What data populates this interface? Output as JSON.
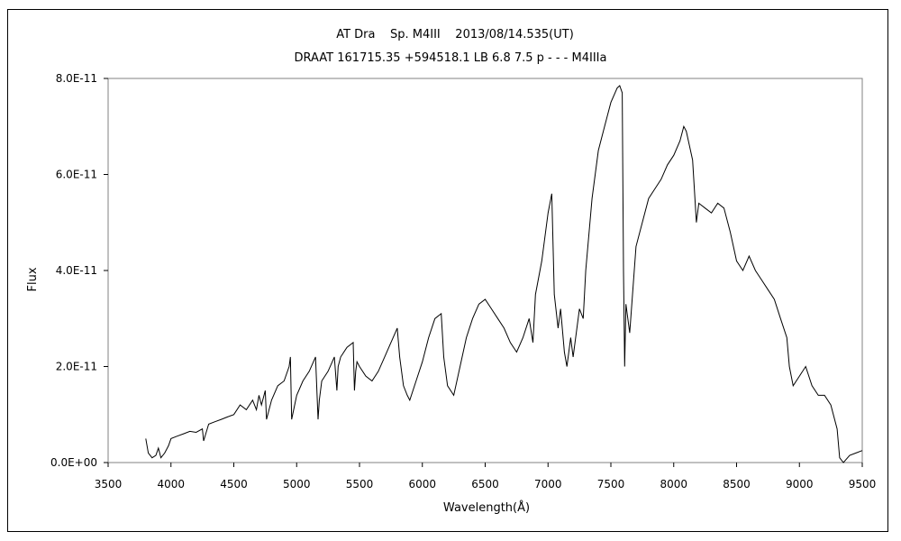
{
  "chart_data": {
    "type": "line",
    "title": "AT Dra    Sp. M4III    2013/08/14.535(UT)",
    "subtitle": "DRAAT 161715.35 +594518.1 LB 6.8 7.5 p - - - M4IIIa",
    "xlabel": "Wavelength(Å)",
    "ylabel": "Flux",
    "xlim": [
      3500,
      9500
    ],
    "ylim": [
      0,
      8e-11
    ],
    "xticks": [
      3500,
      4000,
      4500,
      5000,
      5500,
      6000,
      6500,
      7000,
      7500,
      8000,
      8500,
      9000,
      9500
    ],
    "xtick_labels": [
      "3500",
      "4000",
      "4500",
      "5000",
      "5500",
      "6000",
      "6500",
      "7000",
      "7500",
      "8000",
      "8500",
      "9000",
      "9500"
    ],
    "yticks": [
      0,
      2e-11,
      4e-11,
      6e-11,
      8e-11
    ],
    "ytick_labels": [
      "0.0E+00",
      "2.0E-11",
      "4.0E-11",
      "6.0E-11",
      "8.0E-11"
    ],
    "grid": false,
    "legend": "none",
    "line_color": "#000000",
    "series": [
      {
        "x": [
          3800,
          3820,
          3850,
          3880,
          3900,
          3920,
          3950,
          3980,
          4000,
          4050,
          4100,
          4150,
          4200,
          4250,
          4260,
          4300,
          4350,
          4400,
          4450,
          4500,
          4550,
          4600,
          4650,
          4680,
          4700,
          4720,
          4750,
          4760,
          4800,
          4850,
          4900,
          4940,
          4950,
          4960,
          5000,
          5050,
          5100,
          5150,
          5170,
          5180,
          5200,
          5250,
          5300,
          5320,
          5330,
          5350,
          5400,
          5450,
          5460,
          5470,
          5480,
          5500,
          5550,
          5600,
          5650,
          5700,
          5750,
          5800,
          5820,
          5850,
          5880,
          5900,
          5950,
          6000,
          6050,
          6100,
          6150,
          6170,
          6200,
          6250,
          6300,
          6350,
          6400,
          6450,
          6500,
          6550,
          6600,
          6650,
          6700,
          6750,
          6800,
          6850,
          6880,
          6900,
          6950,
          7000,
          7030,
          7050,
          7080,
          7100,
          7130,
          7150,
          7180,
          7200,
          7250,
          7280,
          7300,
          7350,
          7400,
          7450,
          7500,
          7550,
          7570,
          7590,
          7600,
          7610,
          7620,
          7650,
          7700,
          7750,
          7800,
          7850,
          7900,
          7950,
          8000,
          8050,
          8080,
          8100,
          8150,
          8180,
          8200,
          8250,
          8300,
          8350,
          8400,
          8450,
          8500,
          8550,
          8600,
          8650,
          8700,
          8750,
          8800,
          8850,
          8900,
          8920,
          8950,
          9000,
          9050,
          9100,
          9150,
          9200,
          9250,
          9300,
          9320,
          9350,
          9400,
          9450,
          9500
        ],
        "y": [
          5e-12,
          2e-12,
          1e-12,
          1.5e-12,
          3e-12,
          1e-12,
          2e-12,
          3.5e-12,
          5e-12,
          5.5e-12,
          6e-12,
          6.5e-12,
          6.3e-12,
          7e-12,
          4.5e-12,
          8e-12,
          8.5e-12,
          9e-12,
          9.5e-12,
          1e-11,
          1.2e-11,
          1.1e-11,
          1.3e-11,
          1.1e-11,
          1.4e-11,
          1.2e-11,
          1.5e-11,
          9e-12,
          1.3e-11,
          1.6e-11,
          1.7e-11,
          2e-11,
          2.2e-11,
          9e-12,
          1.4e-11,
          1.7e-11,
          1.9e-11,
          2.2e-11,
          9e-12,
          1.3e-11,
          1.7e-11,
          1.9e-11,
          2.2e-11,
          1.5e-11,
          2e-11,
          2.2e-11,
          2.4e-11,
          2.5e-11,
          1.5e-11,
          1.9e-11,
          2.1e-11,
          2e-11,
          1.8e-11,
          1.7e-11,
          1.9e-11,
          2.2e-11,
          2.5e-11,
          2.8e-11,
          2.2e-11,
          1.6e-11,
          1.4e-11,
          1.3e-11,
          1.7e-11,
          2.1e-11,
          2.6e-11,
          3e-11,
          3.1e-11,
          2.2e-11,
          1.6e-11,
          1.4e-11,
          2e-11,
          2.6e-11,
          3e-11,
          3.3e-11,
          3.4e-11,
          3.2e-11,
          3e-11,
          2.8e-11,
          2.5e-11,
          2.3e-11,
          2.6e-11,
          3e-11,
          2.5e-11,
          3.5e-11,
          4.2e-11,
          5.2e-11,
          5.6e-11,
          3.5e-11,
          2.8e-11,
          3.2e-11,
          2.3e-11,
          2e-11,
          2.6e-11,
          2.2e-11,
          3.2e-11,
          3e-11,
          4e-11,
          5.5e-11,
          6.5e-11,
          7e-11,
          7.5e-11,
          7.8e-11,
          7.85e-11,
          7.7e-11,
          4e-11,
          2e-11,
          3.3e-11,
          2.7e-11,
          4.5e-11,
          5e-11,
          5.5e-11,
          5.7e-11,
          5.9e-11,
          6.2e-11,
          6.4e-11,
          6.7e-11,
          7e-11,
          6.9e-11,
          6.3e-11,
          5e-11,
          5.4e-11,
          5.3e-11,
          5.2e-11,
          5.4e-11,
          5.3e-11,
          4.8e-11,
          4.2e-11,
          4e-11,
          4.3e-11,
          4e-11,
          3.8e-11,
          3.6e-11,
          3.4e-11,
          3e-11,
          2.6e-11,
          2e-11,
          1.6e-11,
          1.8e-11,
          2e-11,
          1.6e-11,
          1.4e-11,
          1.4e-11,
          1.2e-11,
          7e-12,
          1e-12,
          0,
          1.5e-12,
          2e-12,
          2.5e-12
        ]
      }
    ]
  }
}
